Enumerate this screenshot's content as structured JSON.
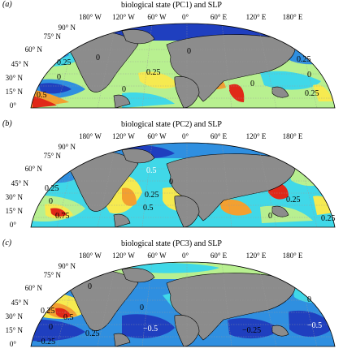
{
  "panels": [
    {
      "letter": "(a)",
      "title": "biological state (PC1) and SLP",
      "contour_labels": [
        "0",
        "0.25",
        "0",
        "0",
        "0.25",
        "0",
        "0.5",
        "0",
        "0.25",
        "0",
        "0.25"
      ]
    },
    {
      "letter": "(b)",
      "title": "biological state (PC2) and SLP",
      "contour_labels": [
        "0.5",
        "0",
        "0.25",
        "0.25",
        "0.5",
        "0.75",
        "0",
        "0.25",
        "0.25",
        "0"
      ]
    },
    {
      "letter": "(c)",
      "title": "biological state (PC3) and SLP",
      "contour_labels": [
        "0",
        "0.25",
        "0.5",
        "0.25",
        "0",
        "−0.25",
        "−0.5",
        "0",
        "−0.5",
        "−0.25",
        "0"
      ]
    }
  ],
  "longitude_labels": [
    "180° W",
    "120° W",
    "60° W",
    "0°",
    "60° E",
    "120° E",
    "180° E"
  ],
  "latitude_labels": [
    "90° N",
    "75° N",
    "60° N",
    "45° N",
    "30° N",
    "15° N",
    "0°"
  ],
  "colors": {
    "land": "#8c8c8c",
    "deep_blue": "#1f3fbf",
    "mid_blue": "#2f8fe0",
    "cyan": "#40d8e8",
    "green": "#b8f090",
    "yellow": "#f6ea50",
    "orange": "#f3a030",
    "red": "#e02818"
  }
}
